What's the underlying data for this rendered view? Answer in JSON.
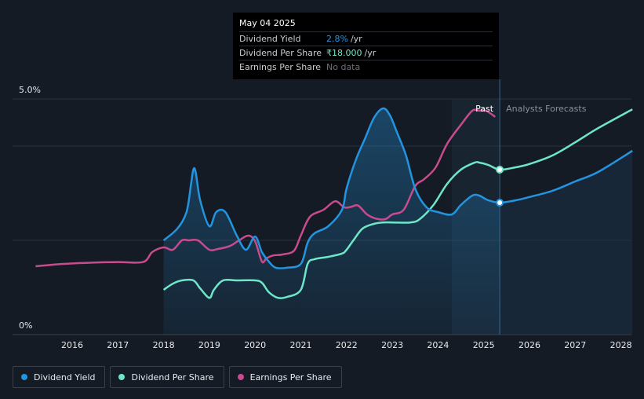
{
  "tooltip": {
    "date": "May 04 2025",
    "rows": [
      {
        "label": "Dividend Yield",
        "value": "2.8%",
        "unit": "/yr"
      },
      {
        "label": "Dividend Per Share",
        "value": "₹18.000",
        "unit": "/yr"
      },
      {
        "label": "Earnings Per Share",
        "value": "No data",
        "unit": ""
      }
    ]
  },
  "legend": [
    {
      "label": "Dividend Yield",
      "color": "#2394df"
    },
    {
      "label": "Dividend Per Share",
      "color": "#6ee7c8"
    },
    {
      "label": "Earnings Per Share",
      "color": "#c84b8e"
    }
  ],
  "chart_data": {
    "type": "line",
    "x_ticks": [
      2016,
      2017,
      2018,
      2019,
      2020,
      2021,
      2022,
      2023,
      2024,
      2025,
      2026,
      2027,
      2028
    ],
    "x_tick_labels": [
      "2016",
      "2017",
      "2018",
      "2019",
      "2020",
      "2021",
      "2022",
      "2023",
      "2024",
      "2025",
      "2026",
      "2027",
      "2028"
    ],
    "y_tick_labels": [
      "5.0%",
      "0%"
    ],
    "ylim": [
      0,
      5.0
    ],
    "xlim": [
      2014.8,
      2028.25
    ],
    "past_label": "Past",
    "forecast_label": "Analysts Forecasts",
    "past_region_start": 2024.3,
    "now": 2025.35,
    "colors": {
      "yield": "#2394df",
      "dps": "#6ee7c8",
      "eps": "#c84b8e"
    },
    "series": [
      {
        "name": "Dividend Yield",
        "x": [
          2018.0,
          2018.3,
          2018.5,
          2018.6,
          2018.65,
          2018.7,
          2018.8,
          2019.0,
          2019.15,
          2019.35,
          2019.6,
          2019.8,
          2020.0,
          2020.15,
          2020.3,
          2020.45,
          2020.7,
          2021.0,
          2021.15,
          2021.3,
          2021.6,
          2021.9,
          2022.0,
          2022.2,
          2022.4,
          2022.6,
          2022.8,
          2022.95,
          2023.1,
          2023.3,
          2023.5,
          2023.75,
          2024.0,
          2024.3,
          2024.5,
          2024.75,
          2024.9,
          2025.1,
          2025.35,
          2025.7,
          2026.0,
          2026.5,
          2027.0,
          2027.5,
          2028.25
        ],
        "values": [
          2.0,
          2.25,
          2.6,
          3.2,
          3.5,
          3.45,
          2.85,
          2.3,
          2.6,
          2.6,
          2.1,
          1.8,
          2.08,
          1.75,
          1.55,
          1.42,
          1.42,
          1.5,
          1.95,
          2.15,
          2.3,
          2.65,
          3.1,
          3.7,
          4.15,
          4.6,
          4.8,
          4.65,
          4.3,
          3.8,
          3.1,
          2.7,
          2.6,
          2.55,
          2.75,
          2.95,
          2.95,
          2.85,
          2.8,
          2.85,
          2.92,
          3.05,
          3.25,
          3.45,
          3.9
        ]
      },
      {
        "name": "Dividend Per Share",
        "x": [
          2018.0,
          2018.2,
          2018.4,
          2018.65,
          2018.8,
          2019.0,
          2019.1,
          2019.3,
          2019.6,
          2020.0,
          2020.15,
          2020.3,
          2020.5,
          2020.7,
          2021.0,
          2021.15,
          2021.3,
          2021.6,
          2021.9,
          2022.0,
          2022.15,
          2022.35,
          2022.6,
          2022.8,
          2023.0,
          2023.4,
          2023.6,
          2023.9,
          2024.2,
          2024.5,
          2024.8,
          2024.9,
          2025.1,
          2025.35,
          2025.7,
          2026.0,
          2026.5,
          2027.0,
          2027.5,
          2028.25
        ],
        "values": [
          0.95,
          1.08,
          1.15,
          1.15,
          0.98,
          0.78,
          0.95,
          1.15,
          1.15,
          1.15,
          1.1,
          0.9,
          0.78,
          0.8,
          0.95,
          1.5,
          1.6,
          1.65,
          1.72,
          1.8,
          2.0,
          2.25,
          2.35,
          2.38,
          2.38,
          2.38,
          2.45,
          2.75,
          3.2,
          3.5,
          3.65,
          3.65,
          3.6,
          3.5,
          3.55,
          3.62,
          3.8,
          4.08,
          4.38,
          4.78
        ]
      },
      {
        "name": "Earnings Per Share",
        "x": [
          2015.2,
          2015.8,
          2016.5,
          2017.0,
          2017.55,
          2017.75,
          2018.0,
          2018.2,
          2018.4,
          2018.55,
          2018.75,
          2019.0,
          2019.2,
          2019.45,
          2019.65,
          2019.85,
          2020.0,
          2020.15,
          2020.25,
          2020.4,
          2020.6,
          2020.85,
          2021.0,
          2021.2,
          2021.5,
          2021.75,
          2021.95,
          2022.1,
          2022.25,
          2022.45,
          2022.65,
          2022.85,
          2023.0,
          2023.25,
          2023.5,
          2023.7,
          2023.95,
          2024.2,
          2024.5,
          2024.75,
          2024.9,
          2025.05,
          2025.25
        ],
        "values": [
          1.45,
          1.5,
          1.53,
          1.54,
          1.54,
          1.75,
          1.85,
          1.8,
          2.0,
          2.0,
          2.0,
          1.8,
          1.82,
          1.88,
          2.0,
          2.1,
          1.98,
          1.55,
          1.62,
          1.68,
          1.7,
          1.78,
          2.1,
          2.5,
          2.65,
          2.83,
          2.7,
          2.71,
          2.74,
          2.55,
          2.46,
          2.45,
          2.55,
          2.65,
          3.15,
          3.3,
          3.55,
          4.05,
          4.45,
          4.75,
          4.75,
          4.75,
          4.62
        ]
      }
    ]
  }
}
